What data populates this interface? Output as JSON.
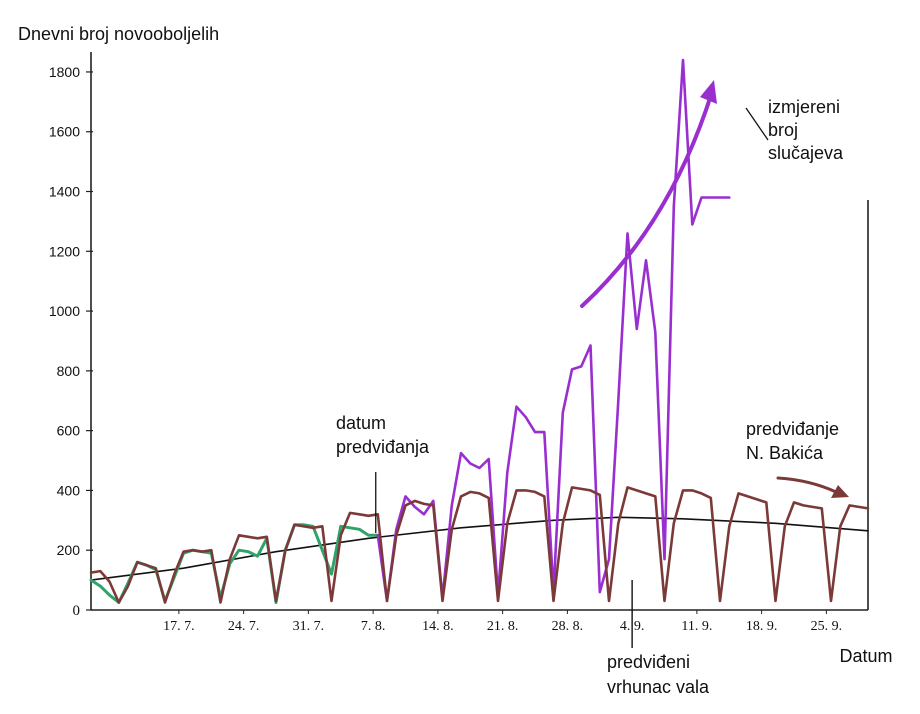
{
  "chart_data": {
    "type": "line",
    "ylabel": "Dnevni broj novooboljelih",
    "xlabel": "Datum",
    "ylim": [
      0,
      1850
    ],
    "y_ticks": [
      0,
      200,
      400,
      600,
      800,
      1000,
      1200,
      1400,
      1600,
      1800
    ],
    "x_tick_labels": [
      "17. 7.",
      "24. 7.",
      "31. 7.",
      "7. 8.",
      "14. 8.",
      "21. 8.",
      "28. 8.",
      "4. 9.",
      "11. 9.",
      "18. 9.",
      "25. 9."
    ],
    "x_ticks_day": [
      17,
      24,
      31,
      38,
      45,
      52,
      59,
      66,
      73,
      80,
      87
    ],
    "x_day_origin": "0. 7.",
    "xlim_day": [
      7.5,
      91.5
    ],
    "grid": false,
    "annotations": {
      "forecast_date": "datum\npredviđanja",
      "measured": "izmjereni\nbroj\nslučajeva",
      "forecast_author": "predviđanje\nN. Bakića",
      "predicted_peak": "predviđeni\nvrhunac vala"
    },
    "forecast_date_day": 38.5,
    "predicted_peak_day": 66,
    "colors": {
      "forecast": "#7b3a38",
      "measured_past": "#2fa36b",
      "measured_new": "#9a2fd0",
      "trend": "#111111",
      "axis": "#222222"
    },
    "series": [
      {
        "role": "forecast",
        "x": [
          7.5,
          8.5,
          9.5,
          10.5,
          11.5,
          12.5,
          13.5,
          14.5,
          15.5,
          16.5,
          17.5,
          18.5,
          19.5,
          20.5,
          21.5,
          22.5,
          23.5,
          24.5,
          25.5,
          26.5,
          27.5,
          28.5,
          29.5,
          30.5,
          31.5,
          32.5,
          33.5,
          34.5,
          35.5,
          36.5,
          37.5,
          38.5,
          39.5,
          40.5,
          41.5,
          42.5,
          43.5,
          44.5,
          45.5,
          46.5,
          47.5,
          48.5,
          49.5,
          50.5,
          51.5,
          52.5,
          53.5,
          54.5,
          55.5,
          56.5,
          57.5,
          58.5,
          59.5,
          60.5,
          61.5,
          62.5,
          63.5,
          64.5,
          65.5,
          66.5,
          67.5,
          68.5,
          69.5,
          70.5,
          71.5,
          72.5,
          73.5,
          74.5,
          75.5,
          76.5,
          77.5,
          78.5,
          79.5,
          80.5,
          81.5,
          82.5,
          83.5,
          84.5,
          85.5,
          86.5,
          87.5,
          88.5,
          89.5,
          90.5,
          91.5
        ],
        "values": [
          125,
          130,
          95,
          25,
          80,
          160,
          150,
          140,
          25,
          120,
          195,
          200,
          195,
          200,
          25,
          170,
          250,
          245,
          240,
          245,
          30,
          200,
          285,
          280,
          275,
          280,
          30,
          250,
          325,
          320,
          315,
          320,
          30,
          250,
          350,
          365,
          355,
          350,
          30,
          270,
          380,
          395,
          390,
          375,
          30,
          290,
          400,
          400,
          395,
          380,
          30,
          290,
          410,
          405,
          400,
          385,
          30,
          290,
          410,
          400,
          390,
          380,
          30,
          290,
          400,
          400,
          390,
          375,
          30,
          280,
          390,
          380,
          370,
          360,
          30,
          280,
          360,
          350,
          345,
          340,
          30,
          280,
          350,
          345,
          340
        ]
      },
      {
        "role": "measured_past",
        "x": [
          7.5,
          8.5,
          9.5,
          10.5,
          11.5,
          12.5,
          13.5,
          14.5,
          15.5,
          16.5,
          17.5,
          18.5,
          19.5,
          20.5,
          21.5,
          22.5,
          23.5,
          24.5,
          25.5,
          26.5,
          27.5,
          28.5,
          29.5,
          30.5,
          31.5,
          32.5,
          33.5,
          34.5,
          35.5,
          36.5,
          37.5,
          38.5
        ],
        "values": [
          100,
          80,
          50,
          25,
          90,
          160,
          150,
          135,
          30,
          110,
          190,
          200,
          195,
          190,
          40,
          155,
          200,
          195,
          180,
          240,
          25,
          200,
          285,
          285,
          280,
          200,
          120,
          280,
          275,
          270,
          250,
          250
        ]
      },
      {
        "role": "measured_new",
        "x": [
          38.5,
          39.5,
          40.5,
          41.5,
          42.5,
          43.5,
          44.5,
          45.5,
          46.5,
          47.5,
          48.5,
          49.5,
          50.5,
          51.5,
          52.5,
          53.5,
          54.5,
          55.5,
          56.5,
          57.5,
          58.5,
          59.5,
          60.5,
          61.5,
          62.5,
          63.5,
          64.5,
          65.5,
          66.5,
          67.5,
          68.5,
          69.5,
          70.5,
          71.5,
          72.5,
          73.5,
          74.5,
          75.5,
          76.5
        ],
        "values": [
          250,
          30,
          270,
          380,
          345,
          320,
          365,
          40,
          350,
          525,
          490,
          475,
          505,
          50,
          460,
          680,
          645,
          595,
          595,
          60,
          660,
          805,
          815,
          885,
          60,
          170,
          700,
          1260,
          940,
          1170,
          930,
          170,
          1350,
          1840,
          1290,
          1380,
          1380,
          1380,
          1380
        ]
      },
      {
        "role": "trend",
        "x": [
          7.5,
          17.5,
          27.5,
          37.5,
          47.5,
          57.5,
          64.5,
          71.5,
          81.5,
          91.5
        ],
        "values": [
          100,
          140,
          195,
          240,
          275,
          300,
          310,
          305,
          290,
          265
        ]
      }
    ]
  }
}
